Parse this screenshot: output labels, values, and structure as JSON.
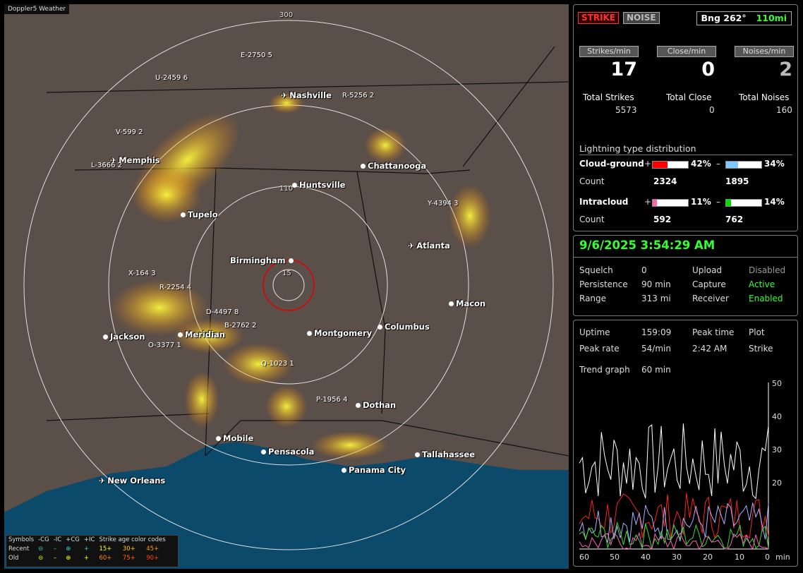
{
  "map": {
    "title": "Doppler5 Weather",
    "range_labels": [
      "300",
      "110",
      "15"
    ],
    "cities": [
      {
        "name": "Nashville",
        "type": "plane"
      },
      {
        "name": "Memphis",
        "type": "plane"
      },
      {
        "name": "Chattanooga",
        "type": "dot"
      },
      {
        "name": "Huntsville",
        "type": "dot"
      },
      {
        "name": "Tupelo",
        "type": "dot"
      },
      {
        "name": "Atlanta",
        "type": "plane"
      },
      {
        "name": "Birmingham",
        "type": "dot"
      },
      {
        "name": "Macon",
        "type": "dot"
      },
      {
        "name": "Jackson",
        "type": "dot"
      },
      {
        "name": "Meridian",
        "type": "dot"
      },
      {
        "name": "Montgomery",
        "type": "dot"
      },
      {
        "name": "Columbus",
        "type": "dot"
      },
      {
        "name": "Dothan",
        "type": "dot"
      },
      {
        "name": "Mobile",
        "type": "dot"
      },
      {
        "name": "Pensacola",
        "type": "dot"
      },
      {
        "name": "Tallahassee",
        "type": "dot"
      },
      {
        "name": "Panama City",
        "type": "dot"
      },
      {
        "name": "New Orleans",
        "type": "plane"
      }
    ],
    "storm_labels": [
      {
        "id": "E-2750",
        "num": "5"
      },
      {
        "id": "U-2459",
        "num": "6"
      },
      {
        "id": "R-5256",
        "num": "2"
      },
      {
        "id": "V-599",
        "num": "2"
      },
      {
        "id": "L-3666",
        "num": "2"
      },
      {
        "id": "Y-4394",
        "num": "3"
      },
      {
        "id": "X-164",
        "num": "3"
      },
      {
        "id": "R-2254",
        "num": "4"
      },
      {
        "id": "D-4497",
        "num": "8"
      },
      {
        "id": "B-2762",
        "num": "2"
      },
      {
        "id": "O-3377",
        "num": "1"
      },
      {
        "id": "Q-1023",
        "num": "1"
      },
      {
        "id": "P-1956",
        "num": "4"
      }
    ],
    "legend": {
      "symbols_label": "Symbols",
      "c1": "-CG",
      "c2": "-IC",
      "c3": "+CG",
      "c4": "+IC",
      "age_label": "Strike age color codes",
      "recent_label": "Recent",
      "old_label": "Old",
      "recent_ages": [
        "15+",
        "30+",
        "45+"
      ],
      "old_ages": [
        "60+",
        "75+",
        "90+"
      ]
    }
  },
  "top_panel": {
    "strike_btn": "STRIKE",
    "noise_btn": "NOISE",
    "bearing": "Bng 262°",
    "distance": "110mi",
    "strikes_min_label": "Strikes/min",
    "close_min_label": "Close/min",
    "noises_min_label": "Noises/min",
    "strikes_min": "17",
    "close_min": "0",
    "noises_min": "2",
    "total_strikes_label": "Total Strikes",
    "total_close_label": "Total Close",
    "total_noises_label": "Total Noises",
    "total_strikes": "5573",
    "total_close": "0",
    "total_noises": "160",
    "dist_title": "Lightning type distribution",
    "cg_label": "Cloud-ground",
    "plus": "+",
    "minus": "–",
    "cg_pos_pct": "42%",
    "cg_neg_pct": "34%",
    "count_label": "Count",
    "cg_pos_count": "2324",
    "cg_neg_count": "1895",
    "ic_label": "Intracloud",
    "ic_pos_pct": "11%",
    "ic_neg_pct": "14%",
    "ic_pos_count": "592",
    "ic_neg_count": "762",
    "cg_pos_frac": 0.42,
    "cg_neg_frac": 0.34,
    "ic_pos_frac": 0.11,
    "ic_neg_frac": 0.14,
    "colors": {
      "cg_pos": "#ff0000",
      "cg_neg": "#7ec8ff",
      "ic_pos": "#ff66aa",
      "ic_neg": "#00e000"
    }
  },
  "status_panel": {
    "datetime": "9/6/2025 3:54:29 AM",
    "squelch_label": "Squelch",
    "squelch": "0",
    "persistence_label": "Persistence",
    "persistence": "90 min",
    "range_label": "Range",
    "range": "313 mi",
    "upload_label": "Upload",
    "upload": "Disabled",
    "capture_label": "Capture",
    "capture": "Active",
    "receiver_label": "Receiver",
    "receiver": "Enabled"
  },
  "trend_panel": {
    "uptime_label": "Uptime",
    "uptime": "159:09",
    "peak_time_label": "Peak time",
    "peak_time": "2:42 AM",
    "plot_label": "Plot",
    "plot_value": "Strike",
    "peak_rate_label": "Peak rate",
    "peak_rate": "54/min",
    "trend_label": "Trend graph",
    "trend_value": "60 min",
    "y_ticks": [
      "50",
      "40",
      "30",
      "20"
    ],
    "x_ticks": [
      "60",
      "50",
      "40",
      "30",
      "20",
      "10",
      "0"
    ],
    "x_unit": "min"
  }
}
